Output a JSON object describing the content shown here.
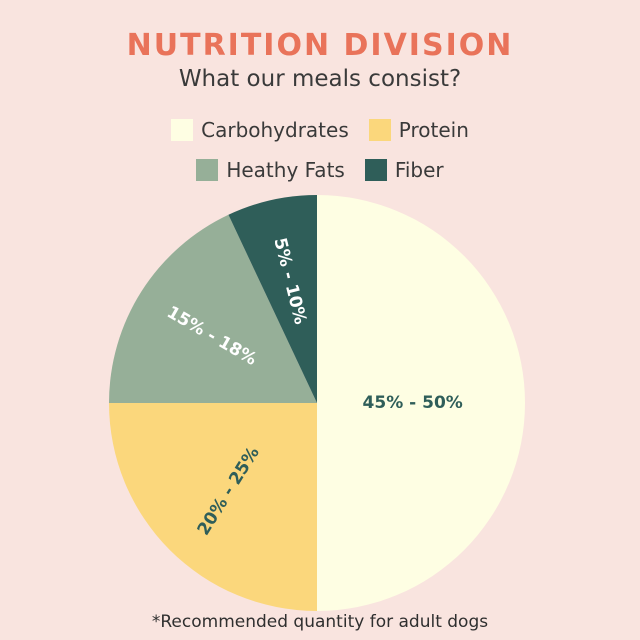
{
  "chart_data": {
    "type": "pie",
    "title": "NUTRITION DIVISION",
    "subtitle": "What our meals consist?",
    "slices": [
      {
        "name": "Carbohydrates",
        "label": "45% - 50%",
        "share": 0.5,
        "color": "#fefee3",
        "text_color": "#2f5e59"
      },
      {
        "name": "Protein",
        "label": "20% - 25%",
        "share": 0.25,
        "color": "#fbd77c",
        "text_color": "#2f5e59"
      },
      {
        "name": "Heathy Fats",
        "label": "15% - 18%",
        "share": 0.18,
        "color": "#96af98",
        "text_color": "#ffffff"
      },
      {
        "name": "Fiber",
        "label": "5% - 10%",
        "share": 0.07,
        "color": "#2f5e59",
        "text_color": "#ffffff"
      }
    ],
    "footnote": "*Recommended quantity for adult dogs"
  }
}
